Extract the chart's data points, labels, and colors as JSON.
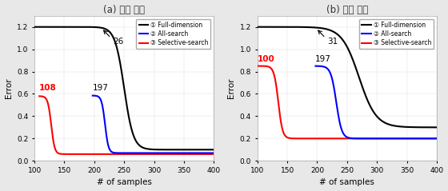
{
  "title_a": "(a) 좌우 방향",
  "title_b": "(b) 상하 방향",
  "xlabel": "# of samples",
  "ylabel": "Error",
  "xlim": [
    100,
    400
  ],
  "ylim": [
    0,
    1.3
  ],
  "xticks": [
    100,
    150,
    200,
    250,
    300,
    350,
    400
  ],
  "yticks": [
    0,
    0.2,
    0.4,
    0.6,
    0.8,
    1.0,
    1.2
  ],
  "colors": {
    "full": "#000000",
    "all": "#0000ff",
    "selective": "#ff0000"
  },
  "legend": [
    "① Full-dimension",
    "② All-search",
    "③ Selective-search"
  ],
  "background_color": "#e8e8e8",
  "plot_bg": "#ffffff",
  "panel_bg": "#f5f5f5"
}
